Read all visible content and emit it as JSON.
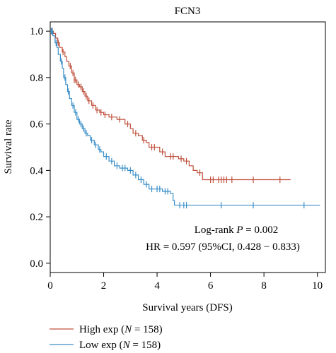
{
  "chart_data": {
    "type": "line",
    "title": "FCN3",
    "xlabel": "Survival years (DFS)",
    "ylabel": "Survival rate",
    "xlim": [
      0,
      10.3
    ],
    "ylim": [
      -0.04,
      1.04
    ],
    "x_ticks": [
      0,
      2,
      4,
      6,
      8,
      10
    ],
    "y_ticks": [
      0.0,
      0.2,
      0.4,
      0.6,
      0.8,
      1.0
    ],
    "x_tick_labels": [
      "0",
      "2",
      "4",
      "6",
      "8",
      "10"
    ],
    "y_tick_labels": [
      "0.0",
      "0.2",
      "0.4",
      "0.6",
      "0.8",
      "1.0"
    ],
    "grid": false,
    "legend_position": "below plot, left",
    "annotations": {
      "logrank_prefix": "Log-rank ",
      "logrank_p": "P",
      "logrank_value": " = 0.002",
      "hr": "HR = 0.597 (95%CI, 0.428 − 0.833)"
    },
    "series": [
      {
        "name": "High exp",
        "legend_n": "158",
        "color": "#c0503c",
        "steps": [
          [
            0,
            1.0
          ],
          [
            0.12,
            0.99
          ],
          [
            0.2,
            0.97
          ],
          [
            0.28,
            0.95
          ],
          [
            0.35,
            0.93
          ],
          [
            0.45,
            0.91
          ],
          [
            0.55,
            0.89
          ],
          [
            0.62,
            0.87
          ],
          [
            0.7,
            0.85
          ],
          [
            0.8,
            0.82
          ],
          [
            0.9,
            0.79
          ],
          [
            1.0,
            0.77
          ],
          [
            1.1,
            0.76
          ],
          [
            1.2,
            0.74
          ],
          [
            1.3,
            0.72
          ],
          [
            1.4,
            0.7
          ],
          [
            1.55,
            0.68
          ],
          [
            1.7,
            0.66
          ],
          [
            1.85,
            0.65
          ],
          [
            2.0,
            0.64
          ],
          [
            2.2,
            0.63
          ],
          [
            2.5,
            0.62
          ],
          [
            2.8,
            0.6
          ],
          [
            3.0,
            0.58
          ],
          [
            3.1,
            0.56
          ],
          [
            3.3,
            0.55
          ],
          [
            3.45,
            0.53
          ],
          [
            3.6,
            0.52
          ],
          [
            3.7,
            0.5
          ],
          [
            4.0,
            0.5
          ],
          [
            4.1,
            0.48
          ],
          [
            4.3,
            0.46
          ],
          [
            4.8,
            0.45
          ],
          [
            5.0,
            0.44
          ],
          [
            5.2,
            0.42
          ],
          [
            5.35,
            0.4
          ],
          [
            5.5,
            0.39
          ],
          [
            5.7,
            0.36
          ],
          [
            9.0,
            0.36
          ]
        ],
        "censor_x": [
          0.05,
          0.08,
          0.3,
          0.48,
          0.75,
          0.85,
          0.9,
          0.95,
          1.05,
          1.15,
          1.25,
          1.35,
          1.45,
          1.6,
          1.75,
          1.9,
          2.05,
          2.3,
          2.6,
          2.9,
          3.2,
          3.5,
          3.8,
          3.9,
          4.2,
          4.5,
          4.6,
          4.9,
          5.1,
          5.6,
          6.0,
          6.1,
          6.3,
          6.4,
          6.5,
          6.6,
          6.8,
          7.6,
          8.6
        ]
      },
      {
        "name": "Low exp",
        "legend_n": "158",
        "color": "#3a8fc8",
        "steps": [
          [
            0,
            1.0
          ],
          [
            0.1,
            0.98
          ],
          [
            0.18,
            0.95
          ],
          [
            0.25,
            0.93
          ],
          [
            0.3,
            0.9
          ],
          [
            0.38,
            0.87
          ],
          [
            0.45,
            0.84
          ],
          [
            0.5,
            0.8
          ],
          [
            0.58,
            0.77
          ],
          [
            0.65,
            0.74
          ],
          [
            0.72,
            0.71
          ],
          [
            0.8,
            0.68
          ],
          [
            0.9,
            0.65
          ],
          [
            1.0,
            0.62
          ],
          [
            1.1,
            0.6
          ],
          [
            1.2,
            0.58
          ],
          [
            1.3,
            0.56
          ],
          [
            1.4,
            0.55
          ],
          [
            1.5,
            0.53
          ],
          [
            1.65,
            0.51
          ],
          [
            1.8,
            0.49
          ],
          [
            1.9,
            0.48
          ],
          [
            2.0,
            0.46
          ],
          [
            2.2,
            0.44
          ],
          [
            2.4,
            0.42
          ],
          [
            2.6,
            0.41
          ],
          [
            2.9,
            0.4
          ],
          [
            3.1,
            0.38
          ],
          [
            3.3,
            0.36
          ],
          [
            3.5,
            0.34
          ],
          [
            3.7,
            0.32
          ],
          [
            4.2,
            0.31
          ],
          [
            4.5,
            0.3
          ],
          [
            4.6,
            0.27
          ],
          [
            4.65,
            0.25
          ],
          [
            10.1,
            0.25
          ]
        ],
        "censor_x": [
          0.04,
          0.07,
          0.22,
          0.42,
          0.55,
          0.68,
          0.85,
          0.95,
          1.05,
          1.15,
          1.25,
          1.35,
          1.55,
          1.7,
          1.85,
          2.1,
          2.3,
          2.5,
          2.7,
          2.8,
          3.0,
          3.2,
          3.4,
          3.6,
          3.8,
          4.0,
          4.1,
          4.3,
          4.4,
          4.85,
          5.0,
          5.1,
          6.4,
          7.6,
          9.5
        ]
      }
    ]
  }
}
